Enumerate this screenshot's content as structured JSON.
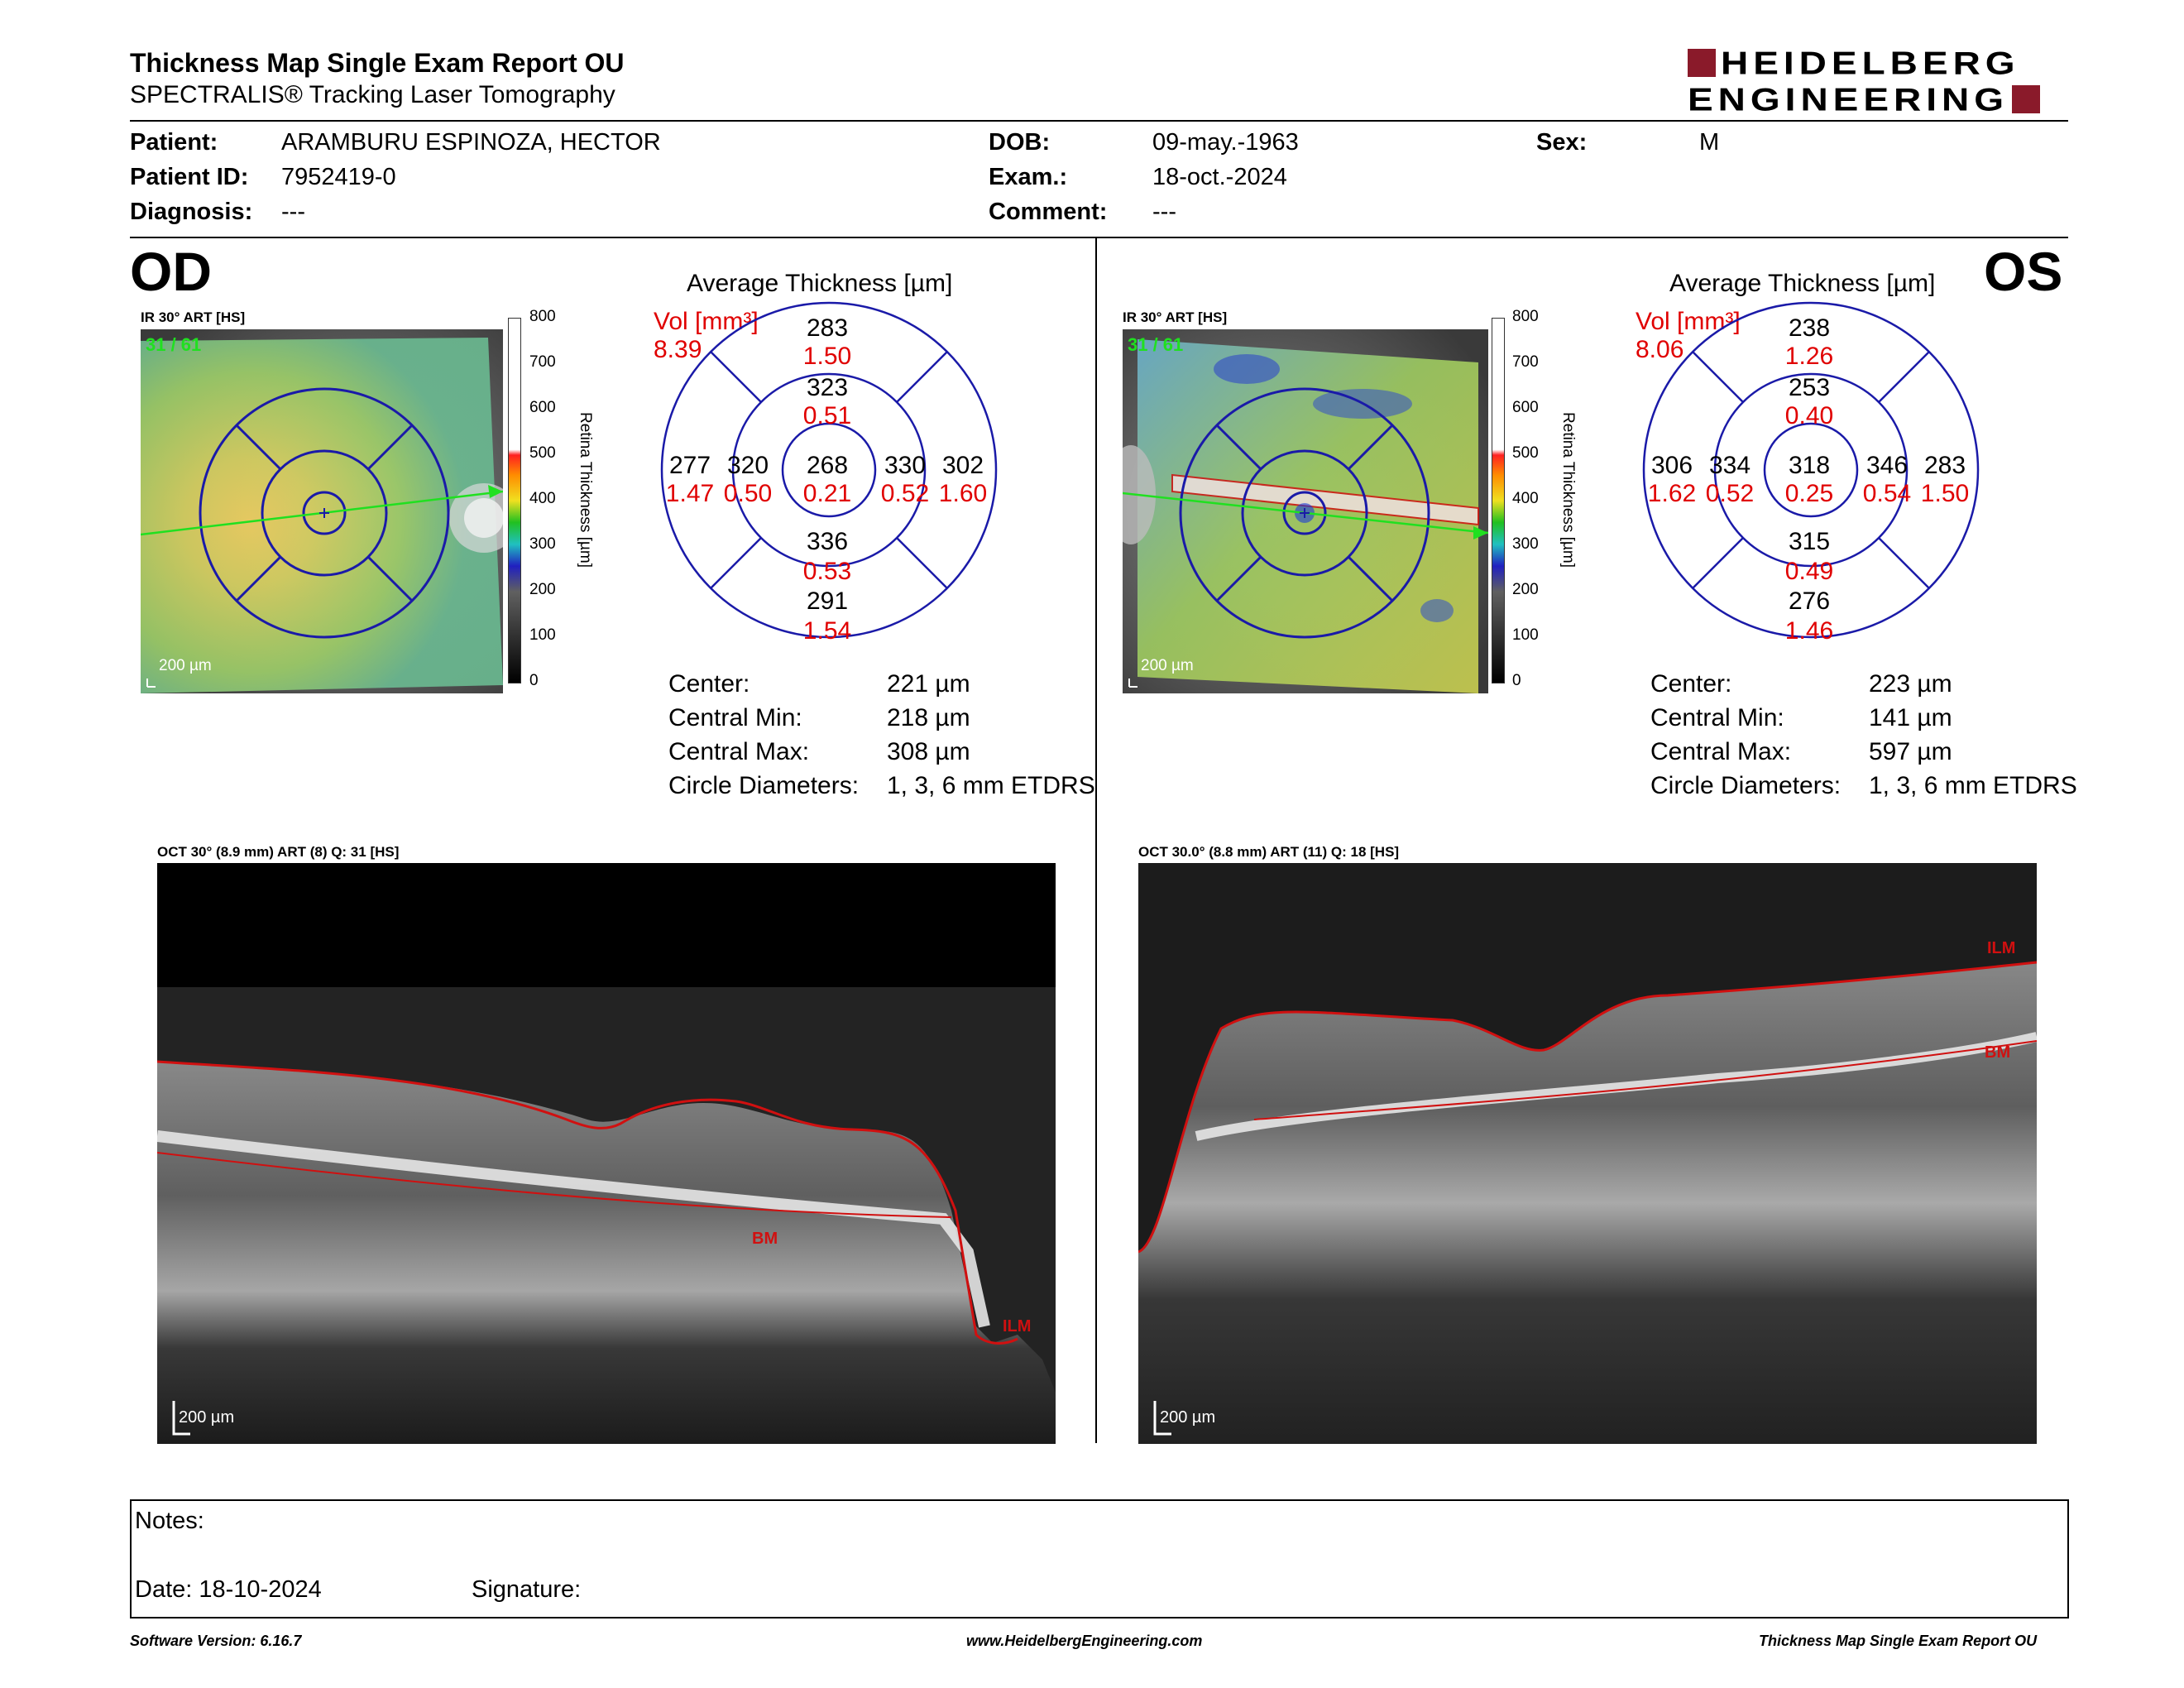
{
  "header": {
    "title": "Thickness Map Single Exam Report OU",
    "subtitle": "SPECTRALIS® Tracking Laser Tomography",
    "logo_line1": "HEIDELBERG",
    "logo_line2": "ENGINEERING"
  },
  "patient": {
    "patient_label": "Patient:",
    "patient_value": "ARAMBURU ESPINOZA, HECTOR",
    "id_label": "Patient ID:",
    "id_value": "7952419-0",
    "diagnosis_label": "Diagnosis:",
    "diagnosis_value": "---",
    "dob_label": "DOB:",
    "dob_value": "09-may.-1963",
    "exam_label": "Exam.:",
    "exam_value": "18-oct.-2024",
    "comment_label": "Comment:",
    "comment_value": "---",
    "sex_label": "Sex:",
    "sex_value": "M"
  },
  "colorbar": {
    "ticks": [
      "800",
      "700",
      "600",
      "500",
      "400",
      "300",
      "200",
      "100",
      "0"
    ],
    "label": "Retina Thickness [µm]"
  },
  "od": {
    "eye": "OD",
    "ir_caption": "IR 30° ART [HS]",
    "frame": "31 / 61",
    "scale": "200 µm",
    "grid_title": "Average Thickness [µm]",
    "vol_label": "Vol [mm³]",
    "vol_total": "8.39",
    "sectors": {
      "outer_top": {
        "t": "283",
        "v": "1.50"
      },
      "inner_top": {
        "t": "323",
        "v": "0.51"
      },
      "outer_left": {
        "t": "277",
        "v": "1.47"
      },
      "inner_left": {
        "t": "320",
        "v": "0.50"
      },
      "center": {
        "t": "268",
        "v": "0.21"
      },
      "inner_right": {
        "t": "330",
        "v": "0.52"
      },
      "outer_right": {
        "t": "302",
        "v": "1.60"
      },
      "inner_bottom": {
        "t": "336",
        "v": "0.53"
      },
      "outer_bottom": {
        "t": "291",
        "v": "1.54"
      }
    },
    "stats": [
      {
        "label": "Center:",
        "value": "221 µm"
      },
      {
        "label": "Central Min:",
        "value": "218 µm"
      },
      {
        "label": "Central Max:",
        "value": "308 µm"
      },
      {
        "label": "Circle Diameters:",
        "value": "1, 3, 6 mm ETDRS"
      }
    ],
    "oct_caption": "OCT 30° (8.9 mm) ART (8) Q: 31 [HS]",
    "oct_scale": "200 µm",
    "layer_ilm": "ILM",
    "layer_bm": "BM"
  },
  "os": {
    "eye": "OS",
    "ir_caption": "IR 30° ART [HS]",
    "frame": "31 / 61",
    "scale": "200 µm",
    "grid_title": "Average Thickness [µm]",
    "vol_label": "Vol [mm³]",
    "vol_total": "8.06",
    "sectors": {
      "outer_top": {
        "t": "238",
        "v": "1.26"
      },
      "inner_top": {
        "t": "253",
        "v": "0.40"
      },
      "outer_left": {
        "t": "306",
        "v": "1.62"
      },
      "inner_left": {
        "t": "334",
        "v": "0.52"
      },
      "center": {
        "t": "318",
        "v": "0.25"
      },
      "inner_right": {
        "t": "346",
        "v": "0.54"
      },
      "outer_right": {
        "t": "283",
        "v": "1.50"
      },
      "inner_bottom": {
        "t": "315",
        "v": "0.49"
      },
      "outer_bottom": {
        "t": "276",
        "v": "1.46"
      }
    },
    "stats": [
      {
        "label": "Center:",
        "value": "223 µm"
      },
      {
        "label": "Central Min:",
        "value": "141 µm"
      },
      {
        "label": "Central Max:",
        "value": "597 µm"
      },
      {
        "label": "Circle Diameters:",
        "value": "1, 3, 6 mm ETDRS"
      }
    ],
    "oct_caption": "OCT 30.0° (8.8 mm) ART (11) Q: 18 [HS]",
    "oct_scale": "200 µm",
    "layer_ilm": "ILM",
    "layer_bm": "BM"
  },
  "notes": {
    "notes_label": "Notes:",
    "date_label": "Date: 18-10-2024",
    "signature_label": "Signature:"
  },
  "footer": {
    "software": "Software Version: 6.16.7",
    "website": "www.HeidelbergEngineering.com",
    "report": "Thickness Map Single Exam Report OU"
  },
  "colors": {
    "volume_red": "#e00000",
    "grid_blue": "#1a1aa8",
    "logo_red": "#8a1a2a",
    "seg_red": "#d01010"
  }
}
